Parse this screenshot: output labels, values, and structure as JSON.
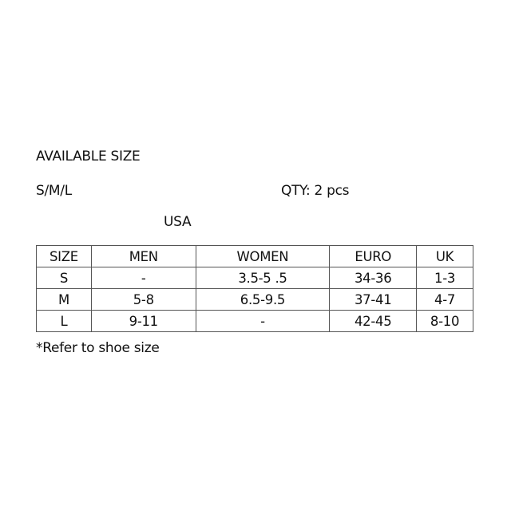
{
  "heading": "AVAILABLE SIZE",
  "sizes": "S/M/L",
  "qty": "QTY: 2 pcs",
  "region_label": "USA",
  "table": {
    "headers": [
      "SIZE",
      "MEN",
      "WOMEN",
      "EURO",
      "UK"
    ],
    "rows": [
      [
        "S",
        "-",
        "3.5-5 .5",
        "34-36",
        "1-3"
      ],
      [
        "M",
        "5-8",
        "6.5-9.5",
        "37-41",
        "4-7"
      ],
      [
        "L",
        "9-11",
        "-",
        "42-45",
        "8-10"
      ]
    ]
  },
  "footnote": "*Refer to shoe size"
}
